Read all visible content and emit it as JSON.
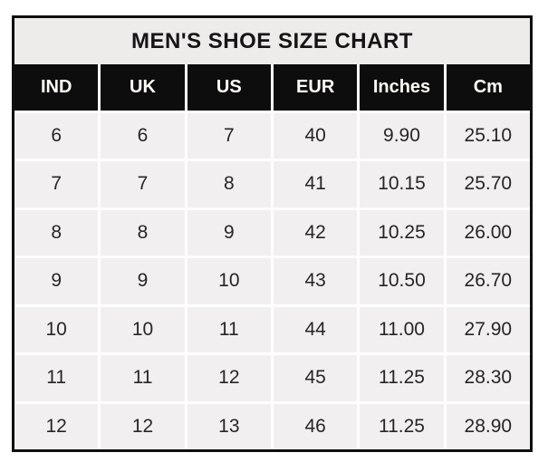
{
  "title": "MEN'S SHOE SIZE CHART",
  "colors": {
    "page_background": "#ffffff",
    "table_border": "#0f0f0f",
    "title_background": "#edecea",
    "header_background": "#0d0d0d",
    "header_text": "#fffdf6",
    "cell_background": "#f1efef",
    "cell_text": "#262626",
    "gridline": "#ffffff"
  },
  "chart_data": {
    "type": "table",
    "title": "MEN'S SHOE SIZE CHART",
    "columns": [
      "IND",
      "UK",
      "US",
      "EUR",
      "Inches",
      "Cm"
    ],
    "rows": [
      [
        "6",
        "6",
        "7",
        "40",
        "9.90",
        "25.10"
      ],
      [
        "7",
        "7",
        "8",
        "41",
        "10.15",
        "25.70"
      ],
      [
        "8",
        "8",
        "9",
        "42",
        "10.25",
        "26.00"
      ],
      [
        "9",
        "9",
        "10",
        "43",
        "10.50",
        "26.70"
      ],
      [
        "10",
        "10",
        "11",
        "44",
        "11.00",
        "27.90"
      ],
      [
        "11",
        "11",
        "12",
        "45",
        "11.25",
        "28.30"
      ],
      [
        "12",
        "12",
        "13",
        "46",
        "11.25",
        "28.90"
      ]
    ]
  }
}
